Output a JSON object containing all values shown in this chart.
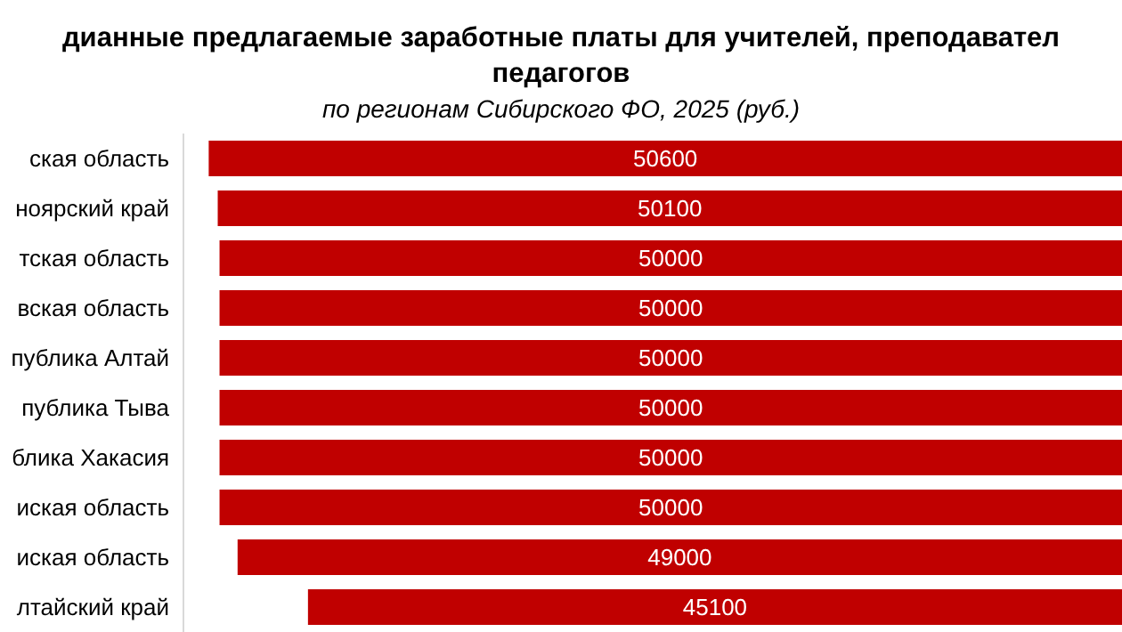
{
  "chart_data": {
    "type": "bar",
    "orientation": "horizontal",
    "title": "дианные  предлагаемые  заработные  платы  для учителей,  преподавател\nпедагогов",
    "subtitle": "по  регионам Сибирского ФО, 2025 (руб.)",
    "categories": [
      "ская область",
      "ноярский край",
      "тская область",
      "вская область",
      "публика Алтай",
      "публика Тыва",
      "блика Хакасия",
      "иская область",
      "иская область",
      "лтайский край"
    ],
    "values": [
      50600,
      50100,
      50000,
      50000,
      50000,
      50000,
      50000,
      50000,
      49000,
      45100
    ],
    "color": "#c00000",
    "xlim": [
      52000,
      0
    ],
    "data_labels": true,
    "tick_labels": "y"
  }
}
